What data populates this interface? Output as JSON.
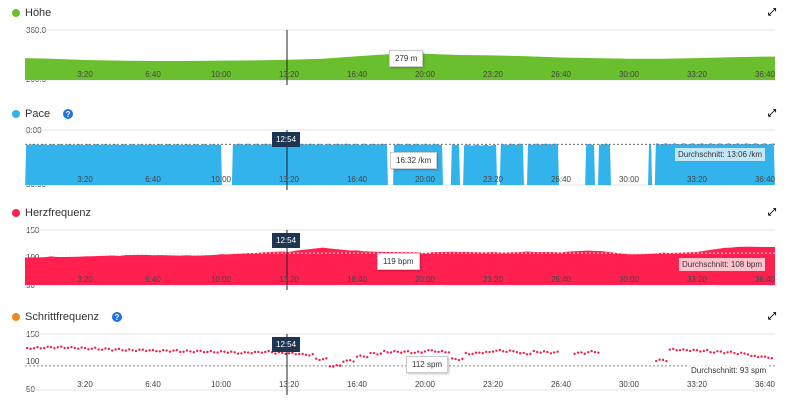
{
  "x_ticks": [
    "3:20",
    "6:40",
    "10:00",
    "13:20",
    "16:40",
    "20:00",
    "23:20",
    "26:40",
    "30:00",
    "33:20",
    "36:40"
  ],
  "cursor": {
    "time": "12:54"
  },
  "colors": {
    "elevation": "#6abf2e",
    "pace": "#33b3ec",
    "heart": "#ff2050",
    "cadence_dot": "#f08a1c",
    "cadence_points": "#ee2050",
    "help": "#1a73e8",
    "cursor_tip": "#1d3550"
  },
  "panels": {
    "elevation": {
      "title": "Höhe",
      "y_top": "360.0",
      "y_bottom": "200.0",
      "tooltip": "279 m",
      "expand_icon": "expand-icon"
    },
    "pace": {
      "title": "Pace",
      "help_icon": "?",
      "y_top": "0:00",
      "y_bottom": "50:00",
      "tooltip": "16:32 /km",
      "average": "Durchschnitt: 13:06 /km"
    },
    "heart": {
      "title": "Herzfrequenz",
      "y_top": "150",
      "y_mid": "100",
      "y_bottom": "50",
      "tooltip": "119 bpm",
      "average": "Durchschnitt: 108 bpm"
    },
    "cadence": {
      "title": "Schrittfrequenz",
      "help_icon": "?",
      "y_top": "150",
      "y_mid": "100",
      "y_bottom": "50",
      "tooltip": "112 spm",
      "average": "Durchschnitt: 93 spm"
    }
  },
  "chart_data": [
    {
      "type": "area",
      "name": "Höhe",
      "x_unit": "s",
      "ylim": [
        200,
        360
      ],
      "x": [
        0,
        100,
        200,
        300,
        400,
        500,
        600,
        700,
        800,
        900,
        1000,
        1100,
        1200,
        1300,
        1400,
        1500,
        1600,
        1700,
        1800,
        1900,
        2000,
        2100,
        2200
      ],
      "values": [
        270,
        268,
        264,
        262,
        261,
        261,
        262,
        263,
        265,
        268,
        276,
        283,
        284,
        280,
        279,
        276,
        272,
        270,
        268,
        268,
        270,
        273,
        275
      ]
    },
    {
      "type": "area",
      "name": "Pace",
      "x_unit": "s",
      "y_unit": "min/km",
      "ylim": [
        0,
        50
      ],
      "average": 13.1,
      "segments": [
        [
          24,
          603,
          13.2
        ],
        [
          632,
          1091,
          12.9
        ],
        [
          1106,
          1253,
          13.0
        ],
        [
          1276,
          1303,
          13.1
        ],
        [
          1312,
          1412,
          13.8
        ],
        [
          1420,
          1491,
          13.0
        ],
        [
          1500,
          1594,
          12.8
        ],
        [
          1671,
          1700,
          13.1
        ],
        [
          1709,
          1747,
          12.9
        ],
        [
          1856,
          1868,
          13.0
        ],
        [
          1876,
          2229,
          12.6
        ]
      ]
    },
    {
      "type": "area",
      "name": "Herzfrequenz",
      "x_unit": "s",
      "ylim": [
        50,
        150
      ],
      "average": 108,
      "x": [
        0,
        100,
        200,
        300,
        400,
        500,
        600,
        700,
        800,
        900,
        1000,
        1100,
        1200,
        1300,
        1400,
        1500,
        1600,
        1700,
        1800,
        1900,
        2000,
        2100,
        2200
      ],
      "values": [
        100,
        102,
        102,
        103,
        104,
        104,
        106,
        108,
        110,
        118,
        113,
        110,
        108,
        110,
        110,
        111,
        109,
        112,
        106,
        109,
        110,
        118,
        119
      ]
    },
    {
      "type": "scatter",
      "name": "Schrittfrequenz",
      "x_unit": "s",
      "ylim": [
        50,
        150
      ],
      "average": 93,
      "x_step": 40,
      "values": [
        124,
        125,
        126,
        126,
        125,
        124,
        123,
        122,
        121,
        121,
        120,
        120,
        119,
        119,
        118,
        118,
        116,
        117,
        118,
        116,
        115,
        113,
        105,
        93,
        102,
        110,
        115,
        118,
        118,
        117,
        120,
        118,
        105,
        115,
        117,
        120,
        119,
        115,
        118,
        117,
        null,
        116,
        118,
        null,
        null,
        null,
        null,
        103,
        122,
        121,
        120,
        118,
        117,
        115,
        110,
        108,
        110
      ]
    }
  ]
}
